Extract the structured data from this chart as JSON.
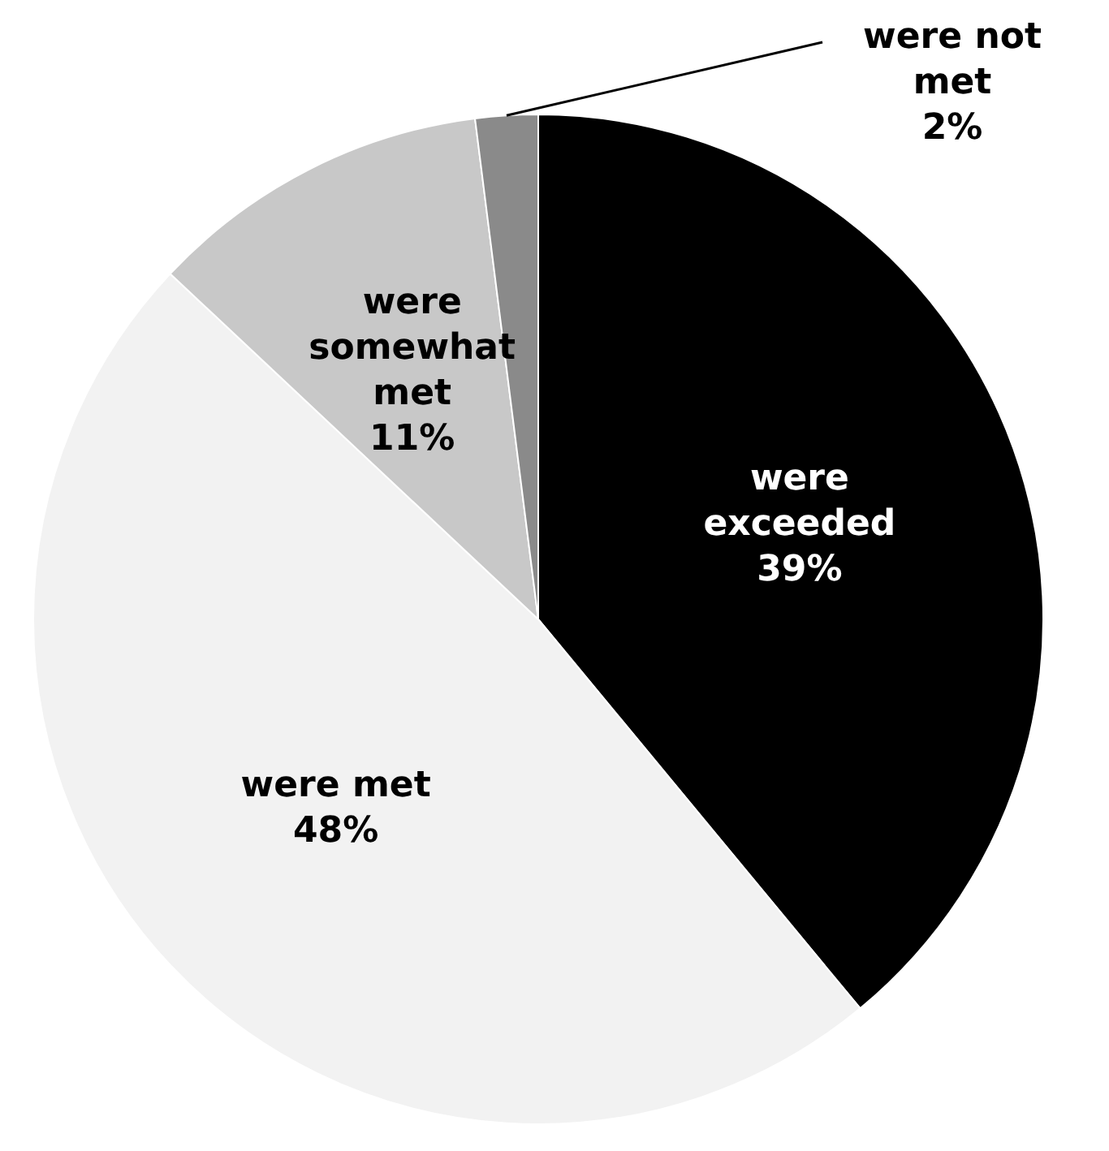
{
  "chart_data": {
    "type": "pie",
    "categories": [
      "were exceeded",
      "were met",
      "were somewhat met",
      "were not met"
    ],
    "values": [
      39,
      48,
      11,
      2
    ],
    "colors": [
      "#000000",
      "#f2f2f2",
      "#c8c8c8",
      "#8a8a8a"
    ],
    "value_labels": [
      "39%",
      "48%",
      "11%",
      "2%"
    ],
    "legend": false
  }
}
